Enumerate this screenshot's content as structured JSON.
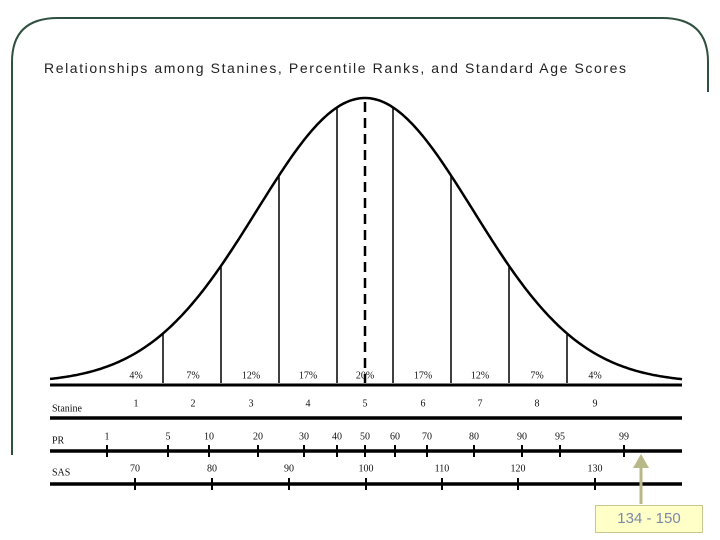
{
  "title": "Relationships among Stanines, Percentile Ranks, and Standard Age Scores",
  "percentages": [
    "4%",
    "7%",
    "12%",
    "17%",
    "20%",
    "17%",
    "12%",
    "7%",
    "4%"
  ],
  "rows": {
    "stanine": "Stanine",
    "pr": "PR",
    "sas": "SAS"
  },
  "stanines": [
    1,
    2,
    3,
    4,
    5,
    6,
    7,
    8,
    9
  ],
  "pr": [
    1,
    5,
    10,
    20,
    30,
    40,
    50,
    60,
    70,
    80,
    90,
    95,
    99
  ],
  "sas": [
    70,
    80,
    90,
    100,
    110,
    120,
    130
  ],
  "callout": "134 - 150"
}
